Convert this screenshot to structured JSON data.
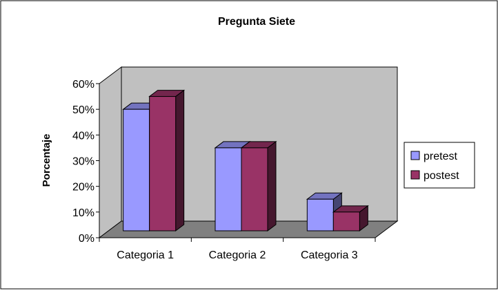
{
  "chart_data": {
    "type": "bar",
    "title": "Pregunta Siete",
    "xlabel": "",
    "ylabel": "Porcentaje",
    "categories": [
      "Categoria 1",
      "Categoria 2",
      "Categoria 3"
    ],
    "series": [
      {
        "name": "pretest",
        "values": [
          50,
          35,
          15
        ],
        "color": "#9999ff"
      },
      {
        "name": "postest",
        "values": [
          55,
          35,
          10
        ],
        "color": "#993366"
      }
    ],
    "ylim": [
      0,
      60
    ],
    "yticks": [
      "0%",
      "10%",
      "20%",
      "30%",
      "40%",
      "50%",
      "60%"
    ],
    "grid": false,
    "legend_position": "right",
    "wall_color": "#c0c0c0",
    "floor_color": "#808080",
    "three_d": true
  }
}
